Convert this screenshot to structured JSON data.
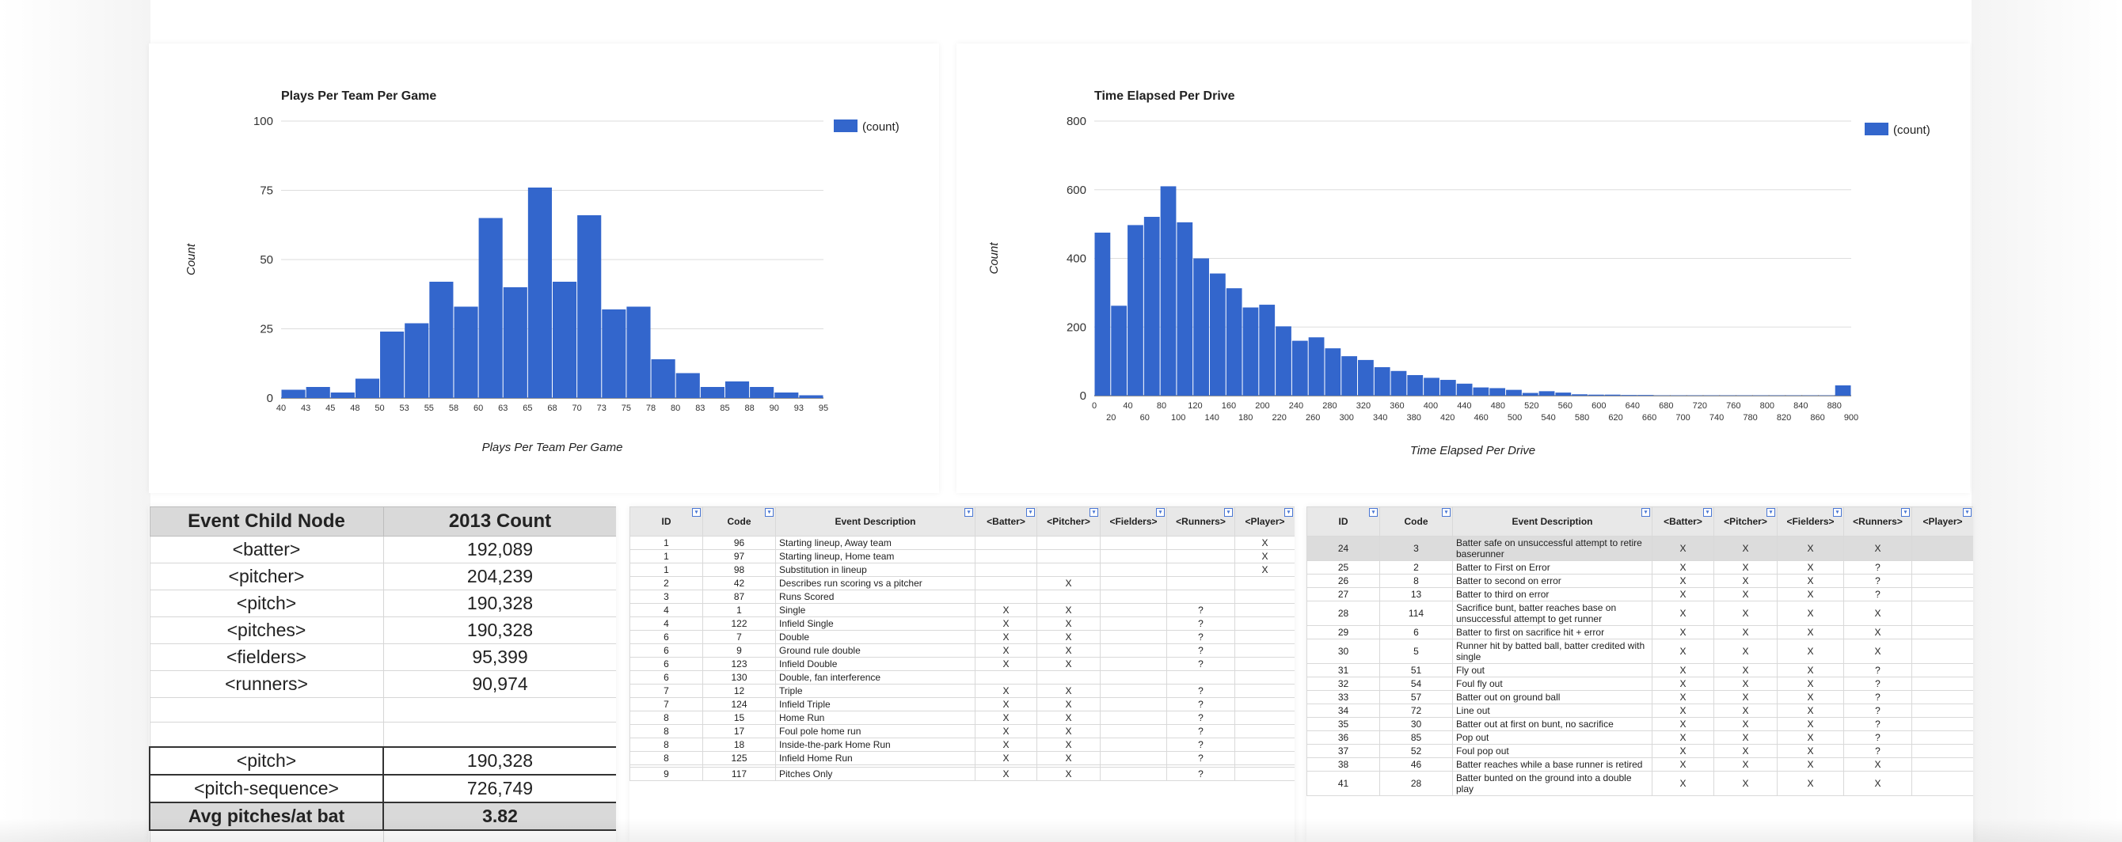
{
  "chart_data": [
    {
      "type": "bar",
      "title": "Plays Per Team Per Game",
      "xlabel": "Plays Per Team Per Game",
      "ylabel": "Count",
      "legend": "(count)",
      "legend_position": "top-right",
      "ylim": [
        0,
        100
      ],
      "yticks": [
        0,
        25,
        50,
        75,
        100
      ],
      "xticks": [
        "40",
        "43",
        "45",
        "48",
        "50",
        "53",
        "55",
        "58",
        "60",
        "63",
        "65",
        "68",
        "70",
        "73",
        "75",
        "78",
        "80",
        "83",
        "85",
        "88",
        "90",
        "93",
        "95"
      ],
      "values": [
        3,
        4,
        2,
        7,
        24,
        27,
        42,
        33,
        65,
        40,
        76,
        42,
        66,
        32,
        33,
        14,
        9,
        4,
        6,
        4,
        2,
        1
      ],
      "grid": true,
      "bar_color": "#3366cc"
    },
    {
      "type": "bar",
      "title": "Time Elapsed Per Drive",
      "xlabel": "Time Elapsed Per Drive",
      "ylabel": "Count",
      "legend": "(count)",
      "legend_position": "top-right",
      "ylim": [
        0,
        800
      ],
      "yticks": [
        0,
        200,
        400,
        600,
        800
      ],
      "xticks_top": [
        "0",
        "40",
        "80",
        "120",
        "160",
        "200",
        "240",
        "280",
        "320",
        "360",
        "400",
        "440",
        "480",
        "520",
        "560",
        "600",
        "640",
        "680",
        "720",
        "760",
        "800",
        "840",
        "880"
      ],
      "xticks_bottom": [
        "20",
        "60",
        "100",
        "140",
        "180",
        "220",
        "260",
        "300",
        "340",
        "380",
        "420",
        "460",
        "500",
        "540",
        "580",
        "620",
        "660",
        "700",
        "740",
        "780",
        "820",
        "860",
        "900"
      ],
      "values": [
        475,
        262,
        497,
        521,
        610,
        505,
        400,
        356,
        313,
        257,
        265,
        202,
        160,
        170,
        138,
        115,
        104,
        83,
        72,
        60,
        52,
        46,
        35,
        24,
        22,
        17,
        8,
        13,
        9,
        4,
        3,
        3,
        2,
        2,
        1,
        1,
        1,
        1,
        1,
        1,
        1,
        1,
        1,
        1,
        1,
        30
      ],
      "grid": true,
      "bar_color": "#3366cc"
    }
  ],
  "event_table": {
    "headers": [
      "Event Child Node",
      "2013 Count"
    ],
    "rows": [
      [
        "<batter>",
        "192,089"
      ],
      [
        "<pitcher>",
        "204,239"
      ],
      [
        "<pitch>",
        "190,328"
      ],
      [
        "<pitches>",
        "190,328"
      ],
      [
        "<fielders>",
        "95,399"
      ],
      [
        "<runners>",
        "90,974"
      ]
    ],
    "boxed_rows": [
      [
        "<pitch>",
        "190,328"
      ],
      [
        "<pitch-sequence>",
        "726,749"
      ]
    ],
    "avg_row": [
      "Avg pitches/at bat",
      "3.82"
    ]
  },
  "code_grid_headers": [
    "ID",
    "Code",
    "Event Description",
    "<Batter>",
    "<Pitcher>",
    "<Fielders>",
    "<Runners>",
    "<Player>"
  ],
  "code_grid_1": [
    [
      "1",
      "96",
      "Starting lineup, Away team",
      "",
      "",
      "",
      "",
      "X"
    ],
    [
      "1",
      "97",
      "Starting lineup, Home team",
      "",
      "",
      "",
      "",
      "X"
    ],
    [
      "1",
      "98",
      "Substitution in lineup",
      "",
      "",
      "",
      "",
      "X"
    ],
    [
      "2",
      "42",
      "Describes run scoring vs a pitcher",
      "",
      "X",
      "",
      "",
      ""
    ],
    [
      "3",
      "87",
      "Runs Scored",
      "",
      "",
      "",
      "",
      ""
    ],
    [
      "4",
      "1",
      "Single",
      "X",
      "X",
      "",
      "?",
      ""
    ],
    [
      "4",
      "122",
      "Infield Single",
      "X",
      "X",
      "",
      "?",
      ""
    ],
    [
      "6",
      "7",
      "Double",
      "X",
      "X",
      "",
      "?",
      ""
    ],
    [
      "6",
      "9",
      "Ground rule double",
      "X",
      "X",
      "",
      "?",
      ""
    ],
    [
      "6",
      "123",
      "Infield Double",
      "X",
      "X",
      "",
      "?",
      ""
    ],
    [
      "6",
      "130",
      "Double, fan interference",
      "",
      "",
      "",
      "",
      ""
    ],
    [
      "7",
      "12",
      "Triple",
      "X",
      "X",
      "",
      "?",
      ""
    ],
    [
      "7",
      "124",
      "Infield Triple",
      "X",
      "X",
      "",
      "?",
      ""
    ],
    [
      "8",
      "15",
      "Home Run",
      "X",
      "X",
      "",
      "?",
      ""
    ],
    [
      "8",
      "17",
      "Foul pole home run",
      "X",
      "X",
      "",
      "?",
      ""
    ],
    [
      "8",
      "18",
      "Inside-the-park Home Run",
      "X",
      "X",
      "",
      "?",
      ""
    ],
    [
      "8",
      "125",
      "Infield Home Run",
      "X",
      "X",
      "",
      "?",
      ""
    ],
    [
      "",
      "",
      "",
      "",
      "",
      "",
      "",
      ""
    ],
    [
      "9",
      "117",
      "Pitches Only",
      "X",
      "X",
      "",
      "?",
      ""
    ]
  ],
  "code_grid_2": [
    [
      "24",
      "3",
      "Batter safe on unsuccessful attempt to retire baserunner",
      "X",
      "X",
      "X",
      "X",
      ""
    ],
    [
      "25",
      "2",
      "Batter to First on Error",
      "X",
      "X",
      "X",
      "?",
      ""
    ],
    [
      "26",
      "8",
      "Batter to second on error",
      "X",
      "X",
      "X",
      "?",
      ""
    ],
    [
      "27",
      "13",
      "Batter to third on error",
      "X",
      "X",
      "X",
      "?",
      ""
    ],
    [
      "28",
      "114",
      "Sacrifice bunt, batter reaches base on unsuccessful attempt to get runner",
      "X",
      "X",
      "X",
      "X",
      ""
    ],
    [
      "29",
      "6",
      "Batter to first on sacrifice hit + error",
      "X",
      "X",
      "X",
      "X",
      ""
    ],
    [
      "30",
      "5",
      "Runner hit by batted ball, batter credited with single",
      "X",
      "X",
      "X",
      "X",
      ""
    ],
    [
      "31",
      "51",
      "Fly out",
      "X",
      "X",
      "X",
      "?",
      ""
    ],
    [
      "32",
      "54",
      "Foul fly out",
      "X",
      "X",
      "X",
      "?",
      ""
    ],
    [
      "33",
      "57",
      "Batter out on ground ball",
      "X",
      "X",
      "X",
      "?",
      ""
    ],
    [
      "34",
      "72",
      "Line out",
      "X",
      "X",
      "X",
      "?",
      ""
    ],
    [
      "35",
      "30",
      "Batter out at first on bunt, no sacrifice",
      "X",
      "X",
      "X",
      "?",
      ""
    ],
    [
      "36",
      "85",
      "Pop out",
      "X",
      "X",
      "X",
      "?",
      ""
    ],
    [
      "37",
      "52",
      "Foul pop out",
      "X",
      "X",
      "X",
      "?",
      ""
    ],
    [
      "38",
      "46",
      "Batter reaches while a base runner is retired",
      "X",
      "X",
      "X",
      "X",
      ""
    ],
    [
      "41",
      "28",
      "Batter bunted on the ground into a double play",
      "X",
      "X",
      "X",
      "X",
      ""
    ]
  ],
  "colors": {
    "bar": "#3366cc",
    "gridline": "#dddddd",
    "header_bg": "#d9d9d9"
  }
}
